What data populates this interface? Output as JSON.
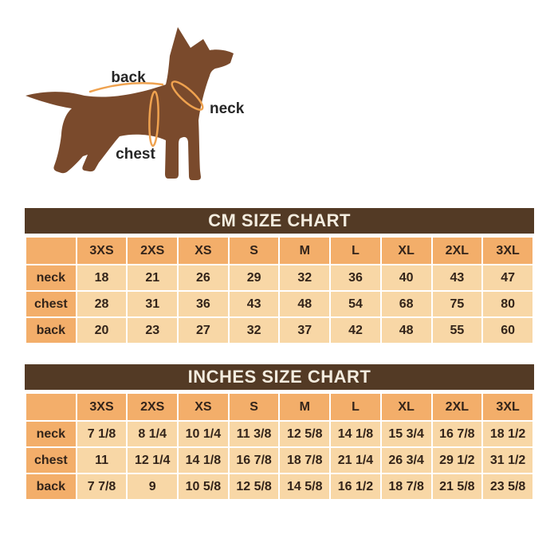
{
  "dog_diagram": {
    "labels": {
      "back": "back",
      "neck": "neck",
      "chest": "chest"
    },
    "colors": {
      "body": "#7a4a2c",
      "measurement_line": "#efa24f",
      "label_text": "#262626"
    }
  },
  "chart_data": [
    {
      "type": "table",
      "title": "CM SIZE CHART",
      "unit": "cm",
      "columns": [
        "",
        "3XS",
        "2XS",
        "XS",
        "S",
        "M",
        "L",
        "XL",
        "2XL",
        "3XL"
      ],
      "rows": [
        [
          "neck",
          "18",
          "21",
          "26",
          "29",
          "32",
          "36",
          "40",
          "43",
          "47"
        ],
        [
          "chest",
          "28",
          "31",
          "36",
          "43",
          "48",
          "54",
          "68",
          "75",
          "80"
        ],
        [
          "back",
          "20",
          "23",
          "27",
          "32",
          "37",
          "42",
          "48",
          "55",
          "60"
        ]
      ]
    },
    {
      "type": "table",
      "title": "INCHES SIZE CHART",
      "unit": "inches",
      "columns": [
        "",
        "3XS",
        "2XS",
        "XS",
        "S",
        "M",
        "L",
        "XL",
        "2XL",
        "3XL"
      ],
      "rows": [
        [
          "neck",
          "7 1/8",
          "8 1/4",
          "10 1/4",
          "11 3/8",
          "12 5/8",
          "14 1/8",
          "15 3/4",
          "16 7/8",
          "18 1/2"
        ],
        [
          "chest",
          "11",
          "12 1/4",
          "14 1/8",
          "16 7/8",
          "18 7/8",
          "21 1/4",
          "26 3/4",
          "29 1/2",
          "31 1/2"
        ],
        [
          "back",
          "7 7/8",
          "9",
          "10 5/8",
          "12 5/8",
          "14 5/8",
          "16 1/2",
          "18 7/8",
          "21 5/8",
          "23 5/8"
        ]
      ]
    }
  ],
  "colors": {
    "page_bg": "#ffffff",
    "title_bar_bg": "#533a25",
    "title_text": "#f3ecdf",
    "header_cell_bg": "#f3ae6a",
    "data_cell_bg": "#f8d7a6",
    "cell_text": "#33241a",
    "grid_line": "#ffffff"
  }
}
